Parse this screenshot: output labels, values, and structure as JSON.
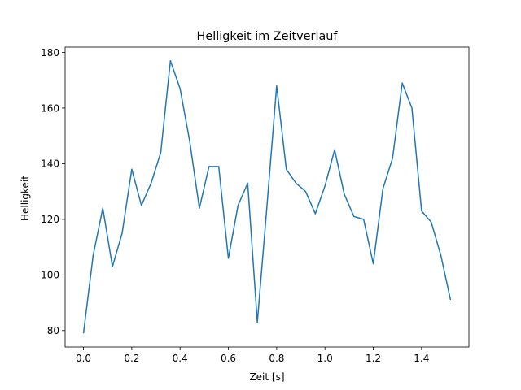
{
  "chart_data": {
    "type": "line",
    "title": "Helligkeit im Zeitverlauf",
    "xlabel": "Zeit [s]",
    "ylabel": "Helligkeit",
    "xlim": [
      -0.076,
      1.596
    ],
    "ylim": [
      74.1,
      181.9
    ],
    "xticks": [
      0.0,
      0.2,
      0.4,
      0.6,
      0.8,
      1.0,
      1.2,
      1.4
    ],
    "xtick_labels": [
      "0.0",
      "0.2",
      "0.4",
      "0.6",
      "0.8",
      "1.0",
      "1.2",
      "1.4"
    ],
    "yticks": [
      80,
      100,
      120,
      140,
      160,
      180
    ],
    "ytick_labels": [
      "80",
      "100",
      "120",
      "140",
      "160",
      "180"
    ],
    "grid": false,
    "color": "#1f77b4",
    "series": [
      {
        "x": [
          0.0,
          0.04,
          0.08,
          0.12,
          0.16,
          0.2,
          0.24,
          0.28,
          0.32,
          0.36,
          0.4,
          0.44,
          0.48,
          0.52,
          0.56,
          0.6,
          0.64,
          0.68,
          0.72,
          0.76,
          0.8,
          0.84,
          0.88,
          0.92,
          0.96,
          1.0,
          1.04,
          1.08,
          1.12,
          1.16,
          1.2,
          1.24,
          1.28,
          1.32,
          1.36,
          1.4,
          1.44,
          1.48,
          1.52
        ],
        "y": [
          79,
          107,
          124,
          103,
          115,
          138,
          125,
          133,
          144,
          177,
          167,
          148,
          124,
          139,
          139,
          106,
          125,
          133,
          83,
          125,
          168,
          138,
          133,
          130,
          122,
          132,
          145,
          129,
          121,
          120,
          104,
          131,
          142,
          169,
          160,
          123,
          119,
          107,
          91
        ]
      }
    ]
  }
}
